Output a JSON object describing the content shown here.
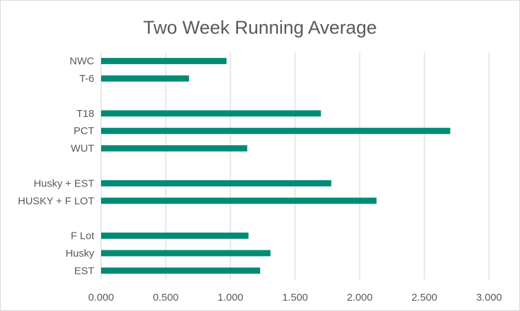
{
  "chart_data": {
    "type": "bar",
    "orientation": "horizontal",
    "title": "Two Week Running Average",
    "xlabel": "",
    "ylabel": "",
    "xlim": [
      0,
      3.0
    ],
    "x_ticks": [
      "0.000",
      "0.500",
      "1.000",
      "1.500",
      "2.000",
      "2.500",
      "3.000"
    ],
    "grid": true,
    "legend": "none",
    "bar_color": "#008B74",
    "categories": [
      "NWC",
      "T-6",
      "",
      "T18",
      "PCT",
      "WUT",
      "",
      "Husky + EST",
      "HUSKY + F LOT",
      "",
      "F Lot",
      "Husky",
      "EST"
    ],
    "values": [
      0.97,
      0.68,
      null,
      1.7,
      2.7,
      1.13,
      null,
      1.78,
      2.13,
      null,
      1.14,
      1.31,
      1.23
    ]
  }
}
